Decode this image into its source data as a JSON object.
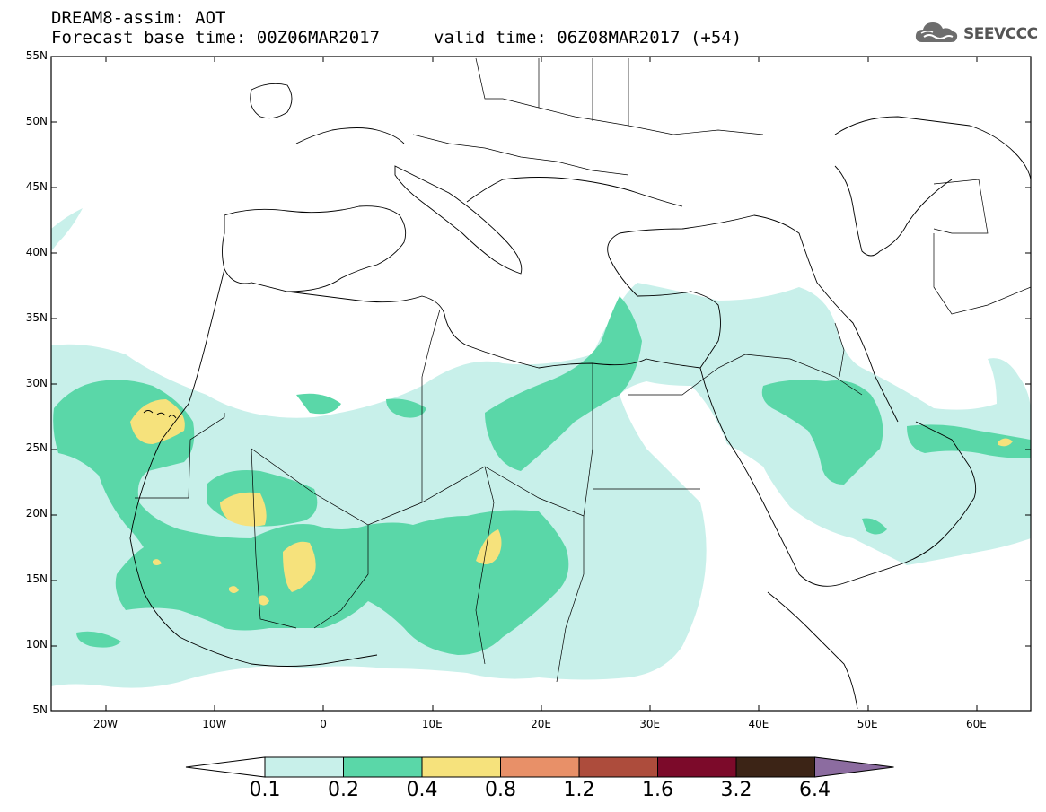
{
  "header": {
    "line1": "DREAM8-assim: AOT",
    "base_time": "Forecast base time: 00Z06MAR2017",
    "valid_time": "valid time: 06Z08MAR2017 (+54)",
    "logo_text": "SEEVCCC",
    "logo_icon": "cloud-icon"
  },
  "map": {
    "lat_labels": [
      "55N",
      "50N",
      "45N",
      "40N",
      "35N",
      "30N",
      "25N",
      "20N",
      "15N",
      "10N",
      "5N"
    ],
    "lon_labels": [
      "20W",
      "10W",
      "0",
      "10E",
      "20E",
      "30E",
      "40E",
      "50E",
      "60E"
    ],
    "lat_range": [
      5,
      55
    ],
    "lon_range": [
      -25,
      65
    ]
  },
  "colorbar": {
    "labels": [
      "0.1",
      "0.2",
      "0.4",
      "0.8",
      "1.2",
      "1.6",
      "3.2",
      "6.4"
    ],
    "colors": [
      "#ffffff",
      "#c8f0ea",
      "#5ad7a8",
      "#f6e27c",
      "#e89068",
      "#ad4c3c",
      "#7c0a2a",
      "#3c2416",
      "#8c6ca0"
    ]
  }
}
